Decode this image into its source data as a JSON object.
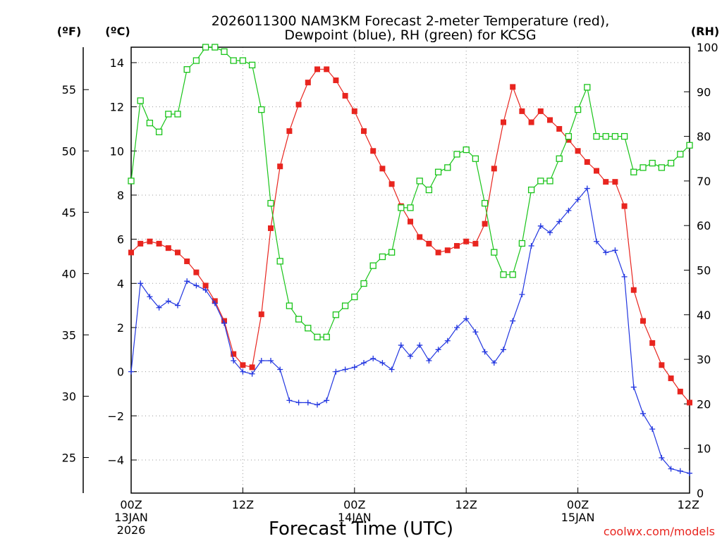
{
  "chart_data": {
    "type": "line",
    "title": [
      "2026011300 NAM3KM Forecast 2-meter Temperature (red),",
      "Dewpoint (blue), RH (green) for KCSG"
    ],
    "xlabel": "Forecast Time (UTC)",
    "left_outer_unit": "(ºF)",
    "left_unit": "(ºC)",
    "right_unit": "(RH)",
    "credit": "coolwx.com/models",
    "x_hours_range": [
      0,
      60
    ],
    "x_ticks": [
      {
        "hour": 0,
        "lines": [
          "00Z",
          "13JAN",
          "2026"
        ]
      },
      {
        "hour": 12,
        "lines": [
          "12Z"
        ]
      },
      {
        "hour": 24,
        "lines": [
          "00Z",
          "14JAN"
        ]
      },
      {
        "hour": 36,
        "lines": [
          "12Z"
        ]
      },
      {
        "hour": 48,
        "lines": [
          "00Z",
          "15JAN"
        ]
      },
      {
        "hour": 60,
        "lines": [
          "12Z"
        ]
      }
    ],
    "y_c_range": [
      -5.5,
      14.7
    ],
    "y_c_ticks": [
      14,
      12,
      10,
      8,
      6,
      4,
      2,
      0,
      -2,
      -4
    ],
    "y_c_tick_labels": [
      "14",
      "12",
      "10",
      "8",
      "6",
      "4",
      "2",
      "0",
      "−2",
      "−4"
    ],
    "y_f_ticks": [
      55,
      50,
      45,
      40,
      35,
      30,
      25
    ],
    "y_f_tick_labels": [
      "55",
      "50",
      "45",
      "40",
      "35",
      "30",
      "25"
    ],
    "y_rh_range": [
      0,
      100
    ],
    "y_rh_ticks": [
      100,
      90,
      80,
      70,
      60,
      50,
      40,
      30,
      20,
      10,
      0
    ],
    "y_rh_tick_labels": [
      "100",
      "90",
      "80",
      "70",
      "60",
      "50",
      "40",
      "30",
      "20",
      "10",
      "0"
    ],
    "series": [
      {
        "name": "Temperature",
        "axis": "C",
        "color": "#e8251f",
        "marker": "filled-square",
        "x": [
          0,
          1,
          2,
          3,
          4,
          5,
          6,
          7,
          8,
          9,
          10,
          11,
          12,
          13,
          14,
          15,
          16,
          17,
          18,
          19,
          20,
          21,
          22,
          23,
          24,
          25,
          26,
          27,
          28,
          29,
          30,
          31,
          32,
          33,
          34,
          35,
          36,
          37,
          38,
          39,
          40,
          41,
          42,
          43,
          44,
          45,
          46,
          47,
          48,
          49,
          50,
          51,
          52,
          53,
          54,
          55,
          56,
          57,
          58,
          59,
          60
        ],
        "values": [
          5.4,
          5.8,
          5.9,
          5.8,
          5.6,
          5.4,
          5.0,
          4.5,
          3.9,
          3.2,
          2.3,
          0.8,
          0.3,
          0.2,
          2.6,
          6.5,
          9.3,
          10.9,
          12.1,
          13.1,
          13.7,
          13.7,
          13.2,
          12.5,
          11.8,
          10.9,
          10.0,
          9.2,
          8.5,
          7.5,
          6.8,
          6.1,
          5.8,
          5.4,
          5.5,
          5.7,
          5.9,
          5.8,
          6.7,
          9.2,
          11.3,
          12.9,
          11.8,
          11.3,
          11.8,
          11.4,
          11.0,
          10.5,
          10.0,
          9.5,
          9.1,
          8.6,
          8.6,
          7.5,
          3.7,
          2.3,
          1.3,
          0.3,
          -0.3,
          -0.9,
          -1.4
        ]
      },
      {
        "name": "Dewpoint",
        "axis": "C",
        "color": "#2236e0",
        "marker": "plus",
        "x": [
          0,
          1,
          2,
          3,
          4,
          5,
          6,
          7,
          8,
          9,
          10,
          11,
          12,
          13,
          14,
          15,
          16,
          17,
          18,
          19,
          20,
          21,
          22,
          23,
          24,
          25,
          26,
          27,
          28,
          29,
          30,
          31,
          32,
          33,
          34,
          35,
          36,
          37,
          38,
          39,
          40,
          41,
          42,
          43,
          44,
          45,
          46,
          47,
          48,
          49,
          50,
          51,
          52,
          53,
          54,
          55,
          56,
          57,
          58,
          59,
          60
        ],
        "values": [
          0.0,
          4.0,
          3.4,
          2.9,
          3.2,
          3.0,
          4.1,
          3.9,
          3.7,
          3.1,
          2.2,
          0.5,
          0.0,
          -0.1,
          0.5,
          0.5,
          0.1,
          -1.3,
          -1.4,
          -1.4,
          -1.5,
          -1.3,
          0.0,
          0.1,
          0.2,
          0.4,
          0.6,
          0.4,
          0.1,
          1.2,
          0.7,
          1.2,
          0.5,
          1.0,
          1.4,
          2.0,
          2.4,
          1.8,
          0.9,
          0.4,
          1.0,
          2.3,
          3.5,
          5.7,
          6.6,
          6.3,
          6.8,
          7.3,
          7.8,
          8.3,
          5.9,
          5.4,
          5.5,
          4.3,
          -0.7,
          -1.9,
          -2.6,
          -3.9,
          -4.4,
          -4.5,
          -4.6
        ]
      },
      {
        "name": "RH",
        "axis": "RH",
        "color": "#19c419",
        "marker": "open-square",
        "x": [
          0,
          1,
          2,
          3,
          4,
          5,
          6,
          7,
          8,
          9,
          10,
          11,
          12,
          13,
          14,
          15,
          16,
          17,
          18,
          19,
          20,
          21,
          22,
          23,
          24,
          25,
          26,
          27,
          28,
          29,
          30,
          31,
          32,
          33,
          34,
          35,
          36,
          37,
          38,
          39,
          40,
          41,
          42,
          43,
          44,
          45,
          46,
          47,
          48,
          49,
          50,
          51,
          52,
          53,
          54,
          55,
          56,
          57,
          58,
          59,
          60
        ],
        "values": [
          70,
          88,
          83,
          81,
          85,
          85,
          95,
          97,
          100,
          100,
          99,
          97,
          97,
          96,
          86,
          65,
          52,
          42,
          39,
          37,
          35,
          35,
          40,
          42,
          44,
          47,
          51,
          53,
          54,
          64,
          64,
          70,
          68,
          72,
          73,
          76,
          77,
          75,
          65,
          54,
          49,
          49,
          56,
          68,
          70,
          70,
          75,
          80,
          86,
          91,
          80,
          80,
          80,
          80,
          72,
          73,
          74,
          73,
          74,
          76,
          78
        ]
      }
    ]
  }
}
